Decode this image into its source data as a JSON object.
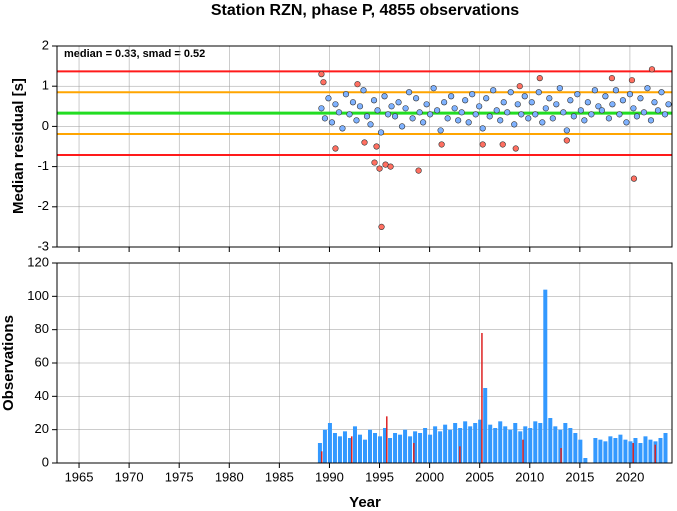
{
  "chart_data": [
    {
      "type": "scatter",
      "title": "Station RZN, phase P, 4855 observations",
      "ylabel": "Median residual [s]",
      "annotation": "median = 0.33, smad = 0.52",
      "xlim": [
        1962.8,
        2024.2
      ],
      "ylim": [
        -3,
        2
      ],
      "yticks": [
        -3,
        -2,
        -1,
        0,
        1,
        2
      ],
      "grid": true,
      "reference_lines": [
        {
          "value": 1.37,
          "color": "#ff1a1a"
        },
        {
          "value": 0.85,
          "color": "#ffa500"
        },
        {
          "value": 0.33,
          "color": "#22dd22"
        },
        {
          "value": -0.19,
          "color": "#ffa500"
        },
        {
          "value": -0.71,
          "color": "#ff1a1a"
        }
      ],
      "series": [
        {
          "color": "#7fb2ff",
          "x": [
            1989.2,
            1989.55,
            1989.9,
            1990.25,
            1990.6,
            1990.95,
            1991.3,
            1991.65,
            1992.0,
            1992.35,
            1992.7,
            1993.05,
            1993.4,
            1993.75,
            1994.1,
            1994.45,
            1994.8,
            1995.15,
            1995.5,
            1995.85,
            1996.2,
            1996.55,
            1996.9,
            1997.25,
            1997.6,
            1997.95,
            1998.3,
            1998.65,
            1999.0,
            1999.35,
            1999.7,
            2000.05,
            2000.4,
            2000.75,
            2001.1,
            2001.45,
            2001.8,
            2002.15,
            2002.5,
            2002.85,
            2003.2,
            2003.55,
            2003.9,
            2004.25,
            2004.6,
            2004.95,
            2005.3,
            2005.65,
            2006.0,
            2006.35,
            2006.7,
            2007.05,
            2007.4,
            2007.75,
            2008.1,
            2008.45,
            2008.8,
            2009.15,
            2009.5,
            2009.85,
            2010.2,
            2010.55,
            2010.9,
            2011.25,
            2011.6,
            2011.95,
            2012.3,
            2012.65,
            2013.0,
            2013.35,
            2013.7,
            2014.05,
            2014.4,
            2014.75,
            2015.1,
            2015.45,
            2015.8,
            2016.15,
            2016.5,
            2016.85,
            2017.2,
            2017.55,
            2017.9,
            2018.25,
            2018.6,
            2018.95,
            2019.3,
            2019.65,
            2020.0,
            2020.35,
            2020.7,
            2021.05,
            2021.4,
            2021.75,
            2022.1,
            2022.45,
            2022.8,
            2023.15,
            2023.5,
            2023.85
          ],
          "values": [
            0.45,
            0.2,
            0.7,
            0.1,
            0.55,
            0.35,
            -0.05,
            0.8,
            0.3,
            0.6,
            0.15,
            0.5,
            0.9,
            0.25,
            0.05,
            0.65,
            0.4,
            -0.15,
            0.75,
            0.3,
            0.5,
            0.25,
            0.6,
            0.0,
            0.45,
            0.85,
            0.2,
            0.7,
            0.35,
            0.1,
            0.55,
            0.3,
            0.95,
            0.4,
            -0.1,
            0.6,
            0.2,
            0.75,
            0.45,
            0.15,
            0.35,
            0.65,
            0.1,
            0.8,
            0.3,
            0.5,
            -0.05,
            0.7,
            0.25,
            0.9,
            0.4,
            0.15,
            0.6,
            0.35,
            0.85,
            0.05,
            0.55,
            0.3,
            0.75,
            0.2,
            0.6,
            0.3,
            0.85,
            0.1,
            0.45,
            0.7,
            0.2,
            0.55,
            0.95,
            0.35,
            -0.1,
            0.65,
            0.25,
            0.8,
            0.4,
            0.15,
            0.6,
            0.3,
            0.9,
            0.5,
            0.4,
            0.75,
            0.2,
            0.55,
            0.9,
            0.3,
            0.65,
            0.1,
            0.8,
            0.45,
            0.25,
            0.7,
            0.35,
            0.95,
            0.15,
            0.6,
            0.4,
            0.85,
            0.3,
            0.55
          ]
        },
        {
          "color": "#ff6f61",
          "x": [
            1989.2,
            1989.4,
            1990.6,
            1992.8,
            1993.5,
            1994.5,
            1994.7,
            1995.0,
            1995.2,
            1995.6,
            1996.1,
            1998.9,
            2001.2,
            2005.3,
            2007.3,
            2008.6,
            2009.0,
            2011.0,
            2013.7,
            2018.2,
            2020.2,
            2020.4,
            2022.2
          ],
          "values": [
            1.3,
            1.1,
            -0.55,
            1.05,
            -0.4,
            -0.9,
            -0.5,
            -1.05,
            -2.5,
            -0.95,
            -1.0,
            -1.1,
            -0.45,
            -0.45,
            -0.45,
            -0.55,
            1.0,
            1.2,
            -0.35,
            1.2,
            1.15,
            -1.3,
            1.42
          ]
        }
      ]
    },
    {
      "type": "bar",
      "xlabel": "Year",
      "ylabel": "Observations",
      "xlim": [
        1962.8,
        2024.2
      ],
      "xticks": [
        1965,
        1970,
        1975,
        1980,
        1985,
        1990,
        1995,
        2000,
        2005,
        2010,
        2015,
        2020
      ],
      "ylim": [
        0,
        120
      ],
      "yticks": [
        0,
        20,
        40,
        60,
        80,
        100,
        120
      ],
      "grid": true,
      "series": [
        {
          "color": "#3399ff",
          "x": [
            1989.0,
            1989.5,
            1990.0,
            1990.5,
            1991.0,
            1991.5,
            1992.0,
            1992.5,
            1993.0,
            1993.5,
            1994.0,
            1994.5,
            1995.0,
            1995.5,
            1996.0,
            1996.5,
            1997.0,
            1997.5,
            1998.0,
            1998.5,
            1999.0,
            1999.5,
            2000.0,
            2000.5,
            2001.0,
            2001.5,
            2002.0,
            2002.5,
            2003.0,
            2003.5,
            2004.0,
            2004.5,
            2005.0,
            2005.5,
            2006.0,
            2006.5,
            2007.0,
            2007.5,
            2008.0,
            2008.5,
            2009.0,
            2009.5,
            2010.0,
            2010.5,
            2011.0,
            2011.5,
            2012.0,
            2012.5,
            2013.0,
            2013.5,
            2014.0,
            2014.5,
            2015.0,
            2015.5,
            2016.0,
            2016.5,
            2017.0,
            2017.5,
            2018.0,
            2018.5,
            2019.0,
            2019.5,
            2020.0,
            2020.5,
            2021.0,
            2021.5,
            2022.0,
            2022.5,
            2023.0,
            2023.5
          ],
          "values": [
            12,
            20,
            24,
            18,
            16,
            19,
            15,
            22,
            17,
            14,
            20,
            18,
            16,
            21,
            15,
            18,
            17,
            20,
            16,
            19,
            18,
            21,
            17,
            22,
            19,
            23,
            20,
            24,
            21,
            25,
            22,
            24,
            26,
            45,
            23,
            21,
            25,
            22,
            20,
            24,
            19,
            22,
            21,
            25,
            24,
            104,
            27,
            22,
            20,
            24,
            21,
            18,
            14,
            3,
            0,
            15,
            14,
            13,
            16,
            15,
            17,
            14,
            13,
            15,
            12,
            16,
            14,
            13,
            15,
            18
          ]
        },
        {
          "color": "#dd2222",
          "x": [
            1989.3,
            1992.3,
            1995.8,
            1998.5,
            2003.1,
            2005.3,
            2009.4,
            2013.2,
            2020.4,
            2022.6
          ],
          "values": [
            7,
            16,
            28,
            12,
            10,
            78,
            14,
            9,
            12,
            11
          ]
        }
      ]
    }
  ]
}
